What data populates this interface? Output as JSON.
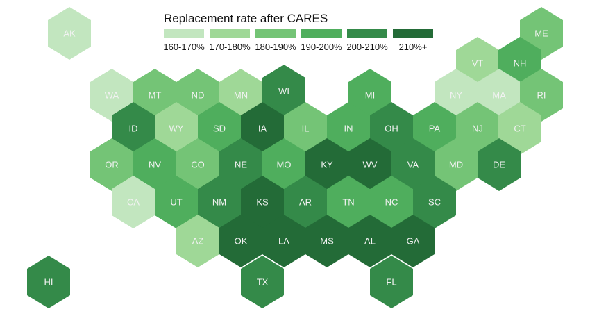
{
  "legend": {
    "title": "Replacement rate after CARES",
    "bins": [
      {
        "label": "160-170%",
        "color": "#c2e6bf"
      },
      {
        "label": "170-180%",
        "color": "#9fd897"
      },
      {
        "label": "180-190%",
        "color": "#74c476"
      },
      {
        "label": "190-200%",
        "color": "#4fae5d"
      },
      {
        "label": "200-210%",
        "color": "#348a49"
      },
      {
        "label": "210%+",
        "color": "#236b37"
      }
    ]
  },
  "states": [
    {
      "abbr": "AK",
      "bin": 0
    },
    {
      "abbr": "ME",
      "bin": 2
    },
    {
      "abbr": "VT",
      "bin": 1
    },
    {
      "abbr": "NH",
      "bin": 3
    },
    {
      "abbr": "WA",
      "bin": 0
    },
    {
      "abbr": "MT",
      "bin": 2
    },
    {
      "abbr": "ND",
      "bin": 2
    },
    {
      "abbr": "MN",
      "bin": 1
    },
    {
      "abbr": "WI",
      "bin": 4
    },
    {
      "abbr": "MI",
      "bin": 3
    },
    {
      "abbr": "NY",
      "bin": 0
    },
    {
      "abbr": "MA",
      "bin": 0
    },
    {
      "abbr": "RI",
      "bin": 2
    },
    {
      "abbr": "ID",
      "bin": 4
    },
    {
      "abbr": "WY",
      "bin": 1
    },
    {
      "abbr": "SD",
      "bin": 3
    },
    {
      "abbr": "IA",
      "bin": 5
    },
    {
      "abbr": "IL",
      "bin": 2
    },
    {
      "abbr": "IN",
      "bin": 3
    },
    {
      "abbr": "OH",
      "bin": 4
    },
    {
      "abbr": "PA",
      "bin": 3
    },
    {
      "abbr": "NJ",
      "bin": 2
    },
    {
      "abbr": "CT",
      "bin": 1
    },
    {
      "abbr": "OR",
      "bin": 2
    },
    {
      "abbr": "NV",
      "bin": 3
    },
    {
      "abbr": "CO",
      "bin": 2
    },
    {
      "abbr": "NE",
      "bin": 4
    },
    {
      "abbr": "MO",
      "bin": 3
    },
    {
      "abbr": "KY",
      "bin": 5
    },
    {
      "abbr": "WV",
      "bin": 5
    },
    {
      "abbr": "VA",
      "bin": 4
    },
    {
      "abbr": "MD",
      "bin": 2
    },
    {
      "abbr": "DE",
      "bin": 4
    },
    {
      "abbr": "CA",
      "bin": 0
    },
    {
      "abbr": "UT",
      "bin": 3
    },
    {
      "abbr": "NM",
      "bin": 4
    },
    {
      "abbr": "KS",
      "bin": 5
    },
    {
      "abbr": "AR",
      "bin": 4
    },
    {
      "abbr": "TN",
      "bin": 3
    },
    {
      "abbr": "NC",
      "bin": 3
    },
    {
      "abbr": "SC",
      "bin": 4
    },
    {
      "abbr": "AZ",
      "bin": 1
    },
    {
      "abbr": "OK",
      "bin": 5
    },
    {
      "abbr": "LA",
      "bin": 5
    },
    {
      "abbr": "MS",
      "bin": 5
    },
    {
      "abbr": "AL",
      "bin": 5
    },
    {
      "abbr": "GA",
      "bin": 5
    },
    {
      "abbr": "HI",
      "bin": 4
    },
    {
      "abbr": "TX",
      "bin": 4
    },
    {
      "abbr": "FL",
      "bin": 4
    }
  ]
}
